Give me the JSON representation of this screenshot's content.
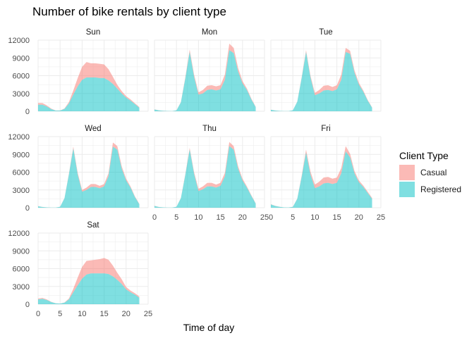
{
  "chart_data": {
    "type": "area",
    "title": "Number of bike rentals by client type",
    "xlabel": "Time of day",
    "ylabel": "",
    "xlim": [
      0,
      25
    ],
    "ylim": [
      0,
      12000
    ],
    "x_ticks": [
      0,
      5,
      10,
      15,
      20,
      25
    ],
    "y_ticks": [
      0,
      3000,
      6000,
      9000,
      12000
    ],
    "stacked": true,
    "grid": true,
    "legend": {
      "title": "Client Type",
      "position": "right",
      "entries": [
        {
          "name": "Casual",
          "color": "#F8766D"
        },
        {
          "name": "Registered",
          "color": "#00BFC4"
        }
      ]
    },
    "x": [
      0,
      1,
      2,
      3,
      4,
      5,
      6,
      7,
      8,
      9,
      10,
      11,
      12,
      13,
      14,
      15,
      16,
      17,
      18,
      19,
      20,
      21,
      22,
      23
    ],
    "facets": [
      {
        "label": "Sun",
        "registered": [
          1100,
          1100,
          800,
          350,
          120,
          120,
          400,
          1300,
          2800,
          4200,
          5300,
          5700,
          5700,
          5700,
          5600,
          5600,
          5200,
          4600,
          3800,
          3000,
          2300,
          1800,
          1200,
          600
        ],
        "casual": [
          300,
          280,
          180,
          90,
          20,
          20,
          80,
          250,
          700,
          1400,
          2200,
          2600,
          2400,
          2400,
          2400,
          2300,
          1900,
          1200,
          650,
          400,
          250,
          200,
          150,
          120
        ]
      },
      {
        "label": "Mon",
        "registered": [
          300,
          150,
          80,
          40,
          30,
          150,
          1500,
          5500,
          10000,
          5800,
          2800,
          3000,
          3600,
          3700,
          3500,
          3700,
          5300,
          10300,
          9800,
          6700,
          4700,
          3600,
          2000,
          700
        ],
        "casual": [
          20,
          10,
          5,
          5,
          5,
          10,
          50,
          200,
          400,
          400,
          400,
          600,
          700,
          700,
          700,
          700,
          900,
          1100,
          900,
          600,
          400,
          250,
          150,
          60
        ]
      },
      {
        "label": "Tue",
        "registered": [
          250,
          120,
          60,
          30,
          30,
          160,
          1600,
          5600,
          10000,
          5700,
          2700,
          3000,
          3500,
          3600,
          3400,
          3700,
          5300,
          10000,
          9700,
          6500,
          4500,
          3300,
          1800,
          600
        ],
        "casual": [
          20,
          10,
          5,
          5,
          5,
          10,
          40,
          150,
          300,
          300,
          400,
          600,
          800,
          800,
          700,
          700,
          900,
          700,
          500,
          400,
          300,
          200,
          120,
          50
        ]
      },
      {
        "label": "Wed",
        "registered": [
          250,
          120,
          60,
          30,
          30,
          160,
          1600,
          5600,
          10000,
          5600,
          2700,
          3000,
          3500,
          3500,
          3300,
          3600,
          5300,
          10300,
          9800,
          6600,
          4600,
          3400,
          1800,
          600
        ],
        "casual": [
          20,
          10,
          5,
          5,
          5,
          10,
          40,
          150,
          300,
          300,
          300,
          400,
          500,
          500,
          400,
          400,
          500,
          700,
          600,
          400,
          300,
          200,
          120,
          50
        ]
      },
      {
        "label": "Thu",
        "registered": [
          300,
          120,
          60,
          30,
          30,
          160,
          1600,
          5500,
          9800,
          5700,
          2800,
          3100,
          3600,
          3600,
          3400,
          3700,
          5300,
          10400,
          9800,
          6600,
          4600,
          3400,
          2000,
          700
        ],
        "casual": [
          20,
          10,
          5,
          5,
          5,
          10,
          40,
          150,
          300,
          300,
          400,
          500,
          600,
          600,
          500,
          500,
          600,
          700,
          600,
          400,
          300,
          200,
          120,
          50
        ]
      },
      {
        "label": "Fri",
        "registered": [
          550,
          300,
          150,
          60,
          40,
          150,
          1500,
          5200,
          9300,
          5600,
          3300,
          3600,
          4100,
          4200,
          4000,
          4200,
          5800,
          9500,
          8500,
          5800,
          4300,
          3500,
          2500,
          1500
        ],
        "casual": [
          50,
          30,
          15,
          5,
          5,
          10,
          50,
          200,
          500,
          500,
          600,
          800,
          1000,
          1000,
          900,
          900,
          900,
          900,
          600,
          400,
          300,
          250,
          200,
          150
        ]
      },
      {
        "label": "Sat",
        "registered": [
          800,
          900,
          700,
          350,
          150,
          100,
          250,
          800,
          2000,
          3200,
          4300,
          5000,
          5200,
          5200,
          5200,
          5200,
          5100,
          4700,
          4100,
          3400,
          2500,
          2000,
          1600,
          1100
        ],
        "casual": [
          150,
          150,
          100,
          50,
          10,
          10,
          50,
          150,
          600,
          1300,
          2000,
          2300,
          2200,
          2300,
          2400,
          2600,
          2400,
          1800,
          1200,
          800,
          400,
          300,
          250,
          200
        ]
      }
    ]
  }
}
